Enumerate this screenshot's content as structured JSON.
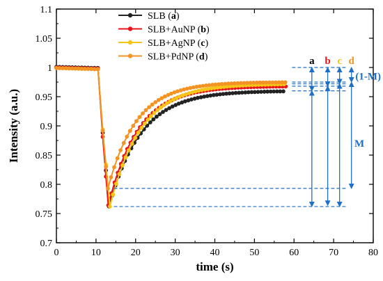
{
  "chart_data": {
    "type": "line",
    "title": "",
    "xlabel": "time (s)",
    "ylabel": "Intensity (a.u.)",
    "xlim": [
      0,
      80
    ],
    "ylim": [
      0.7,
      1.1
    ],
    "xticks": [
      0,
      10,
      20,
      30,
      40,
      50,
      60,
      70,
      80
    ],
    "yticks": [
      0.7,
      0.75,
      0.8,
      0.85,
      0.9,
      0.95,
      1.0,
      1.05,
      1.1
    ],
    "xtick_labels": [
      "0",
      "10",
      "20",
      "30",
      "40",
      "50",
      "60",
      "70",
      "80"
    ],
    "ytick_labels": [
      "0.7",
      "0.75",
      "0.8",
      "0.85",
      "0.9",
      "0.95",
      "1",
      "1.05",
      "1.1"
    ],
    "grid": false,
    "legend_position": "top-left",
    "series": [
      {
        "name": "SLB",
        "tag": "a",
        "color": "#222222",
        "base": 1.001,
        "min_time": 13.3,
        "min_value": 0.762,
        "final": 0.96,
        "tau": 8.0,
        "end": 58
      },
      {
        "name": "SLB+AuNP",
        "tag": "b",
        "color": "#e8141b",
        "base": 1.0,
        "min_time": 13.1,
        "min_value": 0.764,
        "final": 0.968,
        "tau": 7.5,
        "end": 58
      },
      {
        "name": "SLB+AgNP",
        "tag": "c",
        "color": "#f5c518",
        "base": 0.999,
        "min_time": 13.5,
        "min_value": 0.762,
        "final": 0.972,
        "tau": 7.8,
        "end": 58
      },
      {
        "name": "SLB+PdNP",
        "tag": "d",
        "color": "#f39323",
        "base": 0.999,
        "min_time": 13.0,
        "min_value": 0.793,
        "final": 0.975,
        "tau": 7.2,
        "end": 58
      }
    ],
    "annotations": {
      "one_minus_m_label": "(1-M)",
      "m_label": "M",
      "arrow_x": [
        64.5,
        68.5,
        71.5,
        74.5
      ],
      "reference_levels": [
        1.0,
        0.975,
        0.972,
        0.968,
        0.96,
        0.793,
        0.762
      ],
      "annotation_color": "#1f6fc5"
    }
  }
}
